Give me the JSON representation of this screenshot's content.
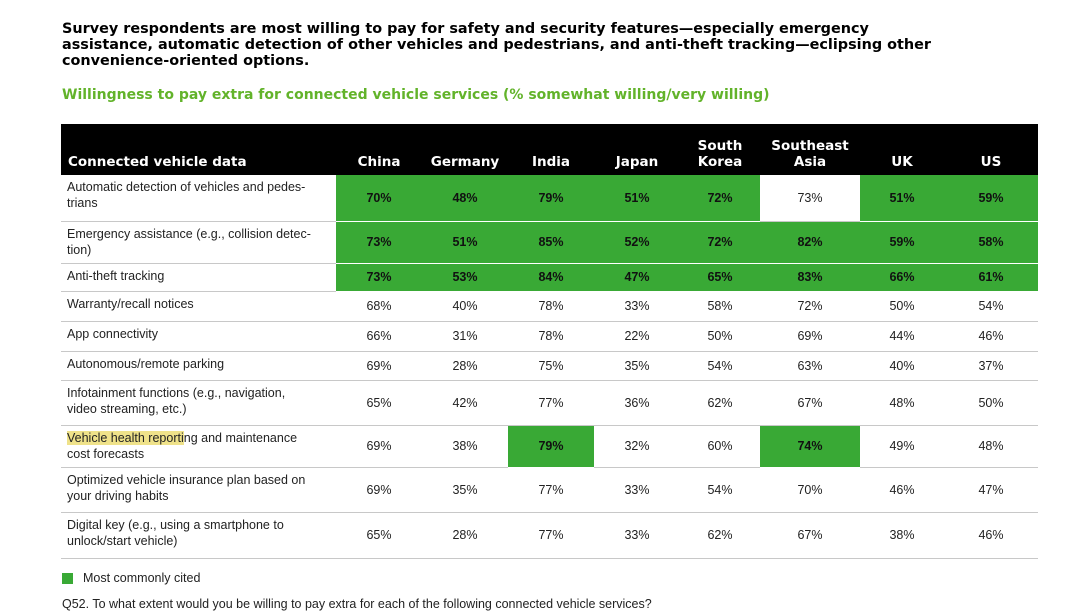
{
  "headline": "Survey respondents are most willing to pay for safety and security features—especially emergency assistance, automatic detection of other vehicles and pedestrians, and anti-theft tracking—eclipsing other convenience-oriented options.",
  "subhead": "Willingness to pay extra for connected vehicle services (% somewhat willing/very willing)",
  "colors": {
    "highlight": "#39a935",
    "subhead": "#62b32a",
    "header_bg": "#000000",
    "text_highlight": "#efe28a"
  },
  "table": {
    "row_header": "Connected vehicle data",
    "columns": [
      {
        "line1": "",
        "line2": "China"
      },
      {
        "line1": "",
        "line2": "Germany"
      },
      {
        "line1": "",
        "line2": "India"
      },
      {
        "line1": "",
        "line2": "Japan"
      },
      {
        "line1": "South",
        "line2": "Korea"
      },
      {
        "line1": "Southeast",
        "line2": "Asia"
      },
      {
        "line1": "",
        "line2": "UK"
      },
      {
        "line1": "",
        "line2": "US"
      }
    ],
    "rows": [
      {
        "label_line1": "Automatic detection of vehicles and pedes-",
        "label_line2": "trians",
        "marked": "",
        "values": [
          "70%",
          "48%",
          "79%",
          "51%",
          "72%",
          "73%",
          "51%",
          "59%"
        ],
        "highlight": [
          true,
          true,
          true,
          true,
          true,
          false,
          true,
          true
        ]
      },
      {
        "label_line1": "Emergency assistance (e.g., collision detec-",
        "label_line2": "tion)",
        "marked": "",
        "values": [
          "73%",
          "51%",
          "85%",
          "52%",
          "72%",
          "82%",
          "59%",
          "58%"
        ],
        "highlight": [
          true,
          true,
          true,
          true,
          true,
          true,
          true,
          true
        ]
      },
      {
        "label_line1": "Anti-theft tracking",
        "label_line2": "",
        "marked": "",
        "values": [
          "73%",
          "53%",
          "84%",
          "47%",
          "65%",
          "83%",
          "66%",
          "61%"
        ],
        "highlight": [
          true,
          true,
          true,
          true,
          true,
          true,
          true,
          true
        ]
      },
      {
        "label_line1": "Warranty/recall notices",
        "label_line2": "",
        "marked": "",
        "values": [
          "68%",
          "40%",
          "78%",
          "33%",
          "58%",
          "72%",
          "50%",
          "54%"
        ],
        "highlight": [
          false,
          false,
          false,
          false,
          false,
          false,
          false,
          false
        ]
      },
      {
        "label_line1": "App connectivity",
        "label_line2": "",
        "marked": "",
        "values": [
          "66%",
          "31%",
          "78%",
          "22%",
          "50%",
          "69%",
          "44%",
          "46%"
        ],
        "highlight": [
          false,
          false,
          false,
          false,
          false,
          false,
          false,
          false
        ]
      },
      {
        "label_line1": "Autonomous/remote parking",
        "label_line2": "",
        "marked": "",
        "values": [
          "69%",
          "28%",
          "75%",
          "35%",
          "54%",
          "63%",
          "40%",
          "37%"
        ],
        "highlight": [
          false,
          false,
          false,
          false,
          false,
          false,
          false,
          false
        ]
      },
      {
        "label_line1": "Infotainment functions (e.g., navigation,",
        "label_line2": "video streaming, etc.)",
        "marked": "",
        "values": [
          "65%",
          "42%",
          "77%",
          "36%",
          "62%",
          "67%",
          "48%",
          "50%"
        ],
        "highlight": [
          false,
          false,
          false,
          false,
          false,
          false,
          false,
          false
        ]
      },
      {
        "label_line1": "ng and maintenance",
        "label_line2": "cost forecasts",
        "marked": "Vehicle health reporti",
        "values": [
          "69%",
          "38%",
          "79%",
          "32%",
          "60%",
          "74%",
          "49%",
          "48%"
        ],
        "highlight": [
          false,
          false,
          true,
          false,
          false,
          true,
          false,
          false
        ]
      },
      {
        "label_line1": "Optimized vehicle insurance plan based on",
        "label_line2": "your driving habits",
        "marked": "",
        "values": [
          "69%",
          "35%",
          "77%",
          "33%",
          "54%",
          "70%",
          "46%",
          "47%"
        ],
        "highlight": [
          false,
          false,
          false,
          false,
          false,
          false,
          false,
          false
        ]
      },
      {
        "label_line1": "Digital key (e.g., using a smartphone to",
        "label_line2": "unlock/start vehicle)",
        "marked": "",
        "values": [
          "65%",
          "28%",
          "77%",
          "33%",
          "62%",
          "67%",
          "38%",
          "46%"
        ],
        "highlight": [
          false,
          false,
          false,
          false,
          false,
          false,
          false,
          false
        ]
      }
    ]
  },
  "legend": {
    "label": "Most commonly cited"
  },
  "question": "Q52. To what extent would you be willing to pay extra for each of the following connected vehicle services?"
}
